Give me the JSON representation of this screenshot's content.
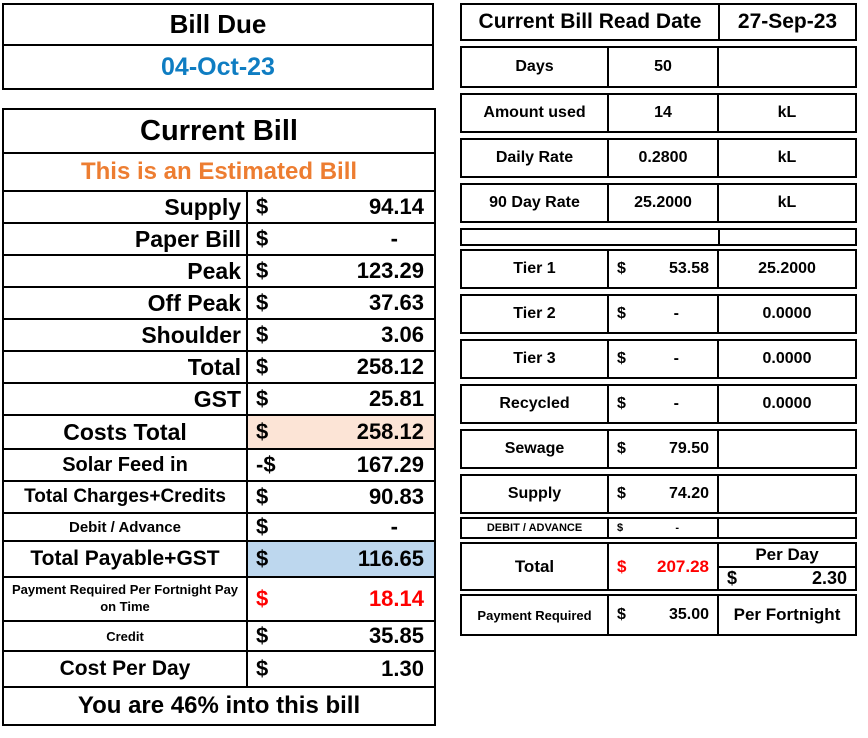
{
  "colors": {
    "date_text_blue": "#0f7dc2",
    "estimated_orange": "#ed7d31",
    "costs_total_bg_peach": "#fce4d6",
    "total_payable_bg_blue": "#bdd7ee",
    "alert_red": "#ff0000",
    "border_black": "#000000"
  },
  "bill_due": {
    "title": "Bill Due",
    "date": "04-Oct-23"
  },
  "current_bill": {
    "title": "Current Bill",
    "subtitle": "This is an Estimated Bill",
    "rows": [
      {
        "label": "Supply",
        "currency": "$",
        "value": "94.14"
      },
      {
        "label": "Paper Bill",
        "currency": "$",
        "value": "-"
      },
      {
        "label": "Peak",
        "currency": "$",
        "value": "123.29"
      },
      {
        "label": "Off Peak",
        "currency": "$",
        "value": "37.63"
      },
      {
        "label": "Shoulder",
        "currency": "$",
        "value": "3.06"
      },
      {
        "label": "Total",
        "currency": "$",
        "value": "258.12"
      },
      {
        "label": "GST",
        "currency": "$",
        "value": "25.81"
      },
      {
        "label": "Costs Total",
        "currency": "$",
        "value": "258.12"
      },
      {
        "label": "Solar Feed in",
        "currency": "-$",
        "value": "167.29"
      },
      {
        "label": "Total Charges+Credits",
        "currency": "$",
        "value": "90.83"
      },
      {
        "label": "Debit / Advance",
        "currency": "$",
        "value": "-"
      },
      {
        "label": "Total Payable+GST",
        "currency": "$",
        "value": "116.65"
      },
      {
        "label": "Payment Required Per Fortnight Pay on Time",
        "currency": "$",
        "value": "18.14"
      },
      {
        "label": "Credit",
        "currency": "$",
        "value": "35.85"
      },
      {
        "label": "Cost Per Day",
        "currency": "$",
        "value": "1.30"
      }
    ],
    "footer": "You are 46% into this bill"
  },
  "usage_panel": {
    "header": {
      "label": "Current Bill Read Date",
      "date": "27-Sep-23"
    },
    "meter_rows": [
      {
        "label": "Days",
        "value": "50",
        "unit": ""
      },
      {
        "label": "Amount used",
        "value": "14",
        "unit": "kL"
      },
      {
        "label": "Daily Rate",
        "value": "0.2800",
        "unit": "kL"
      },
      {
        "label": "90 Day Rate",
        "value": "25.2000",
        "unit": "kL"
      }
    ],
    "charge_rows": [
      {
        "label": "Tier 1",
        "currency": "$",
        "value": "53.58",
        "rate": "25.2000"
      },
      {
        "label": "Tier 2",
        "currency": "$",
        "value": "-",
        "rate": "0.0000"
      },
      {
        "label": "Tier 3",
        "currency": "$",
        "value": "-",
        "rate": "0.0000"
      },
      {
        "label": "Recycled",
        "currency": "$",
        "value": "-",
        "rate": "0.0000"
      },
      {
        "label": "Sewage",
        "currency": "$",
        "value": "79.50",
        "rate": ""
      },
      {
        "label": "Supply",
        "currency": "$",
        "value": "74.20",
        "rate": ""
      },
      {
        "label": "DEBIT / ADVANCE",
        "currency": "$",
        "value": "-",
        "rate": ""
      }
    ],
    "total_row": {
      "label": "Total",
      "currency": "$",
      "value": "207.28",
      "per_day_label": "Per Day",
      "per_day_currency": "$",
      "per_day_value": "2.30"
    },
    "payment_row": {
      "label": "Payment Required",
      "currency": "$",
      "value": "35.00",
      "unit": "Per Fortnight"
    }
  }
}
